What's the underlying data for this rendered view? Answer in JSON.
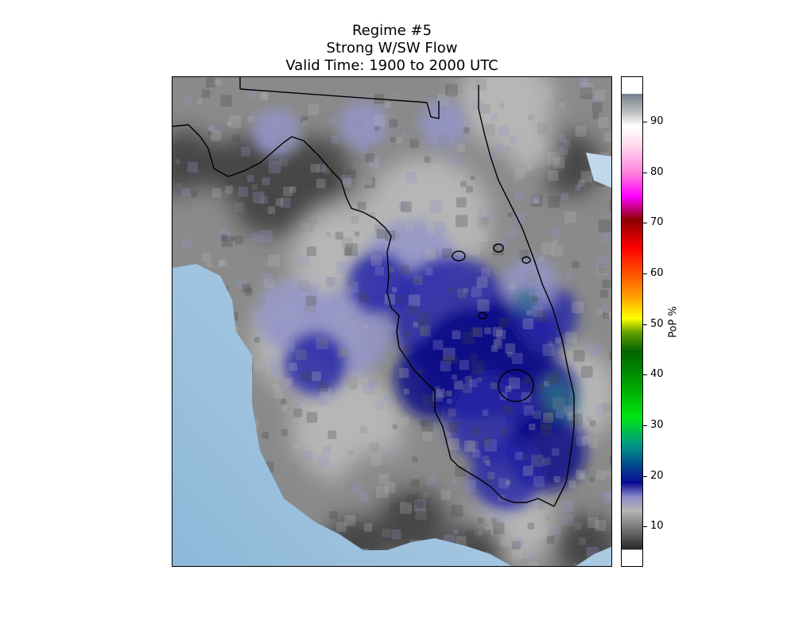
{
  "title": {
    "line1": "Regime #5",
    "line2": "Strong W/SW Flow",
    "line3": "Valid Time: 1900 to 2000 UTC"
  },
  "colorbar": {
    "label": "PoP %",
    "min": 2,
    "max": 99,
    "ticks": [
      "10",
      "20",
      "30",
      "40",
      "50",
      "60",
      "70",
      "80",
      "90"
    ],
    "stops": [
      {
        "v": 2,
        "c": "#2b2b2b"
      },
      {
        "v": 6,
        "c": "#707070"
      },
      {
        "v": 10,
        "c": "#b4b4b4"
      },
      {
        "v": 13,
        "c": "#8c8cc8"
      },
      {
        "v": 16,
        "c": "#0a0a96"
      },
      {
        "v": 20,
        "c": "#00508c"
      },
      {
        "v": 24,
        "c": "#009688"
      },
      {
        "v": 30,
        "c": "#00e614"
      },
      {
        "v": 36,
        "c": "#00aa00"
      },
      {
        "v": 44,
        "c": "#006400"
      },
      {
        "v": 48,
        "c": "#64a000"
      },
      {
        "v": 51,
        "c": "#ffff00"
      },
      {
        "v": 55,
        "c": "#ffaa00"
      },
      {
        "v": 60,
        "c": "#ff5a00"
      },
      {
        "v": 66,
        "c": "#ff0000"
      },
      {
        "v": 72,
        "c": "#8c0000"
      },
      {
        "v": 77,
        "c": "#ff00ff"
      },
      {
        "v": 82,
        "c": "#ff82dc"
      },
      {
        "v": 88,
        "c": "#ffdcf0"
      },
      {
        "v": 92,
        "c": "#ffffff"
      },
      {
        "v": 95,
        "c": "#bdbdbd"
      },
      {
        "v": 99,
        "c": "#6e7c8c"
      }
    ]
  },
  "map_colors": {
    "ocean_light": "#c6dcee",
    "ocean_dark": "#8db8d8",
    "land_dark": "#464646",
    "land_mid": "#8a8a8a",
    "land_light": "#b6b6b6",
    "lavender": "#9494c8",
    "blue": "#2828a8",
    "navy": "#0a0a88",
    "teal": "#246a88",
    "coastline": "#000000"
  }
}
